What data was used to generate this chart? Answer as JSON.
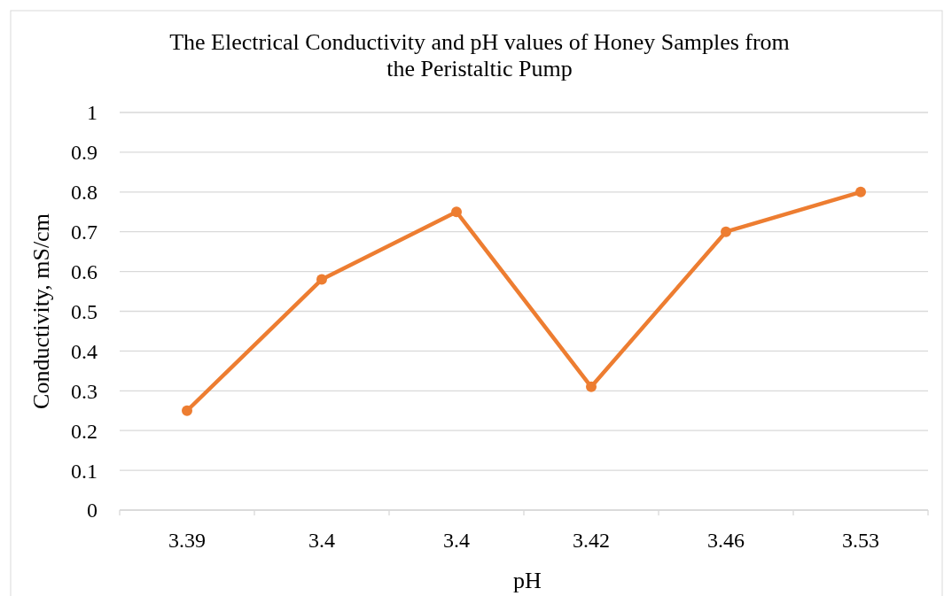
{
  "chart_data": {
    "type": "line",
    "title": "The Electrical Conductivity and pH values of Honey Samples from the Peristaltic Pump",
    "xlabel": "pH",
    "ylabel": "Conductivity, mS/cm",
    "categories": [
      "3.39",
      "3.4",
      "3.4",
      "3.42",
      "3.46",
      "3.53"
    ],
    "series": [
      {
        "color": "#ed7d31",
        "values": [
          0.25,
          0.58,
          0.75,
          0.31,
          0.7,
          0.8
        ]
      }
    ],
    "ylim": [
      0,
      1
    ],
    "yticks": [
      0,
      0.1,
      0.2,
      0.3,
      0.4,
      0.5,
      0.6,
      0.7,
      0.8,
      0.9,
      1
    ],
    "grid": "y",
    "marker": "circle",
    "line_style": "solid"
  }
}
